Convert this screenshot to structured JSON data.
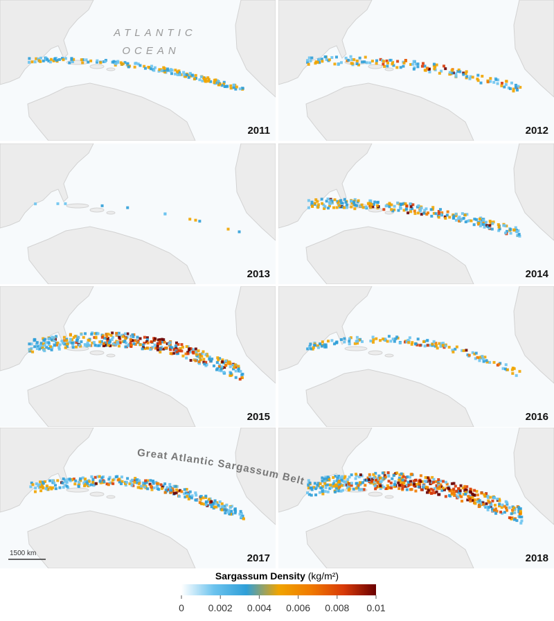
{
  "panels": [
    {
      "year": "2011"
    },
    {
      "year": "2012"
    },
    {
      "year": "2013"
    },
    {
      "year": "2014"
    },
    {
      "year": "2015"
    },
    {
      "year": "2016"
    },
    {
      "year": "2017"
    },
    {
      "year": "2018"
    }
  ],
  "ocean_label": [
    "ATLANTIC",
    "OCEAN"
  ],
  "belt_label": "Great Atlantic Sargassum Belt",
  "scale_bar": "1500 km",
  "legend": {
    "title": "Sargassum Density",
    "unit": "(kg/m²)",
    "range": [
      0,
      0.01
    ],
    "ticks": [
      0,
      0.002,
      0.004,
      0.006,
      0.008,
      0.01
    ],
    "colors": [
      "#ffffff",
      "#6cc3ee",
      "#2f9fd8",
      "#f0a400",
      "#f07a00",
      "#d83a08",
      "#6a0000"
    ]
  }
}
